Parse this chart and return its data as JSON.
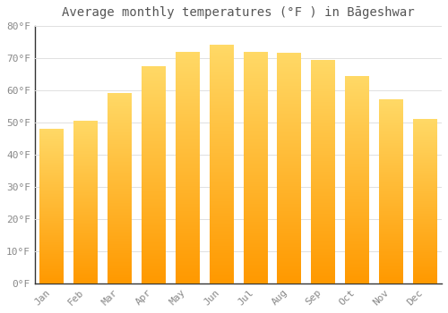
{
  "title": "Average monthly temperatures (°F ) in Bāgeshwar",
  "months": [
    "Jan",
    "Feb",
    "Mar",
    "Apr",
    "May",
    "Jun",
    "Jul",
    "Aug",
    "Sep",
    "Oct",
    "Nov",
    "Dec"
  ],
  "values": [
    48,
    50.5,
    59,
    67.5,
    72,
    74,
    72,
    71.5,
    69.5,
    64.5,
    57,
    51
  ],
  "bar_color": "#FFA500",
  "bar_color_light": "#FFD966",
  "background_color": "#FFFFFF",
  "grid_color": "#E0E0E0",
  "ylim": [
    0,
    80
  ],
  "yticks": [
    0,
    10,
    20,
    30,
    40,
    50,
    60,
    70,
    80
  ],
  "title_fontsize": 10,
  "tick_fontsize": 8,
  "tick_color": "#888888",
  "bar_width": 0.7
}
